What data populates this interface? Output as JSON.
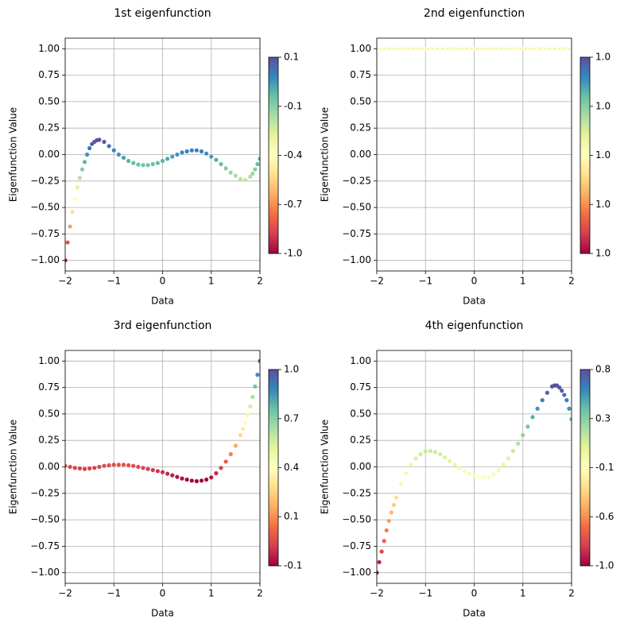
{
  "chart_data": [
    {
      "type": "scatter",
      "title": "1st eigenfunction",
      "x_label": "Data",
      "y_label": "Eigenfunction Value",
      "colormap": "Spectral",
      "grid": true,
      "x": [
        -2,
        -1.95,
        -1.9,
        -1.85,
        -1.8,
        -1.75,
        -1.7,
        -1.65,
        -1.6,
        -1.55,
        -1.5,
        -1.45,
        -1.4,
        -1.35,
        -1.3,
        -1.2,
        -1.1,
        -1.0,
        -0.9,
        -0.8,
        -0.7,
        -0.6,
        -0.5,
        -0.4,
        -0.3,
        -0.2,
        -0.1,
        0,
        0.1,
        0.2,
        0.3,
        0.4,
        0.5,
        0.6,
        0.7,
        0.8,
        0.9,
        1.0,
        1.1,
        1.2,
        1.3,
        1.4,
        1.5,
        1.6,
        1.7,
        1.8,
        1.85,
        1.9,
        1.95,
        2.0
      ],
      "values": [
        -1.0,
        -0.83,
        -0.68,
        -0.54,
        -0.42,
        -0.31,
        -0.22,
        -0.14,
        -0.07,
        0.0,
        0.06,
        0.1,
        0.12,
        0.135,
        0.14,
        0.12,
        0.08,
        0.04,
        0.0,
        -0.03,
        -0.06,
        -0.08,
        -0.095,
        -0.1,
        -0.1,
        -0.09,
        -0.08,
        -0.06,
        -0.04,
        -0.02,
        0.0,
        0.02,
        0.03,
        0.04,
        0.04,
        0.03,
        0.01,
        -0.02,
        -0.05,
        -0.09,
        -0.13,
        -0.17,
        -0.2,
        -0.23,
        -0.24,
        -0.21,
        -0.18,
        -0.14,
        -0.09,
        -0.04
      ],
      "xlim": [
        -2,
        2
      ],
      "ylim": [
        -1.1,
        1.1
      ],
      "xticks": [
        {
          "value": -2,
          "label": "−2"
        },
        {
          "value": -1,
          "label": "−1"
        },
        0,
        1,
        2
      ],
      "yticks": [
        {
          "value": -1,
          "label": "−1.00"
        },
        {
          "value": -0.75,
          "label": "−0.75"
        },
        {
          "value": -0.5,
          "label": "−0.50"
        },
        {
          "value": -0.25,
          "label": "−0.25"
        },
        {
          "value": 0,
          "label": "0.00"
        },
        {
          "value": 0.25,
          "label": "0.25"
        },
        {
          "value": 0.5,
          "label": "0.50"
        },
        {
          "value": 0.75,
          "label": "0.75"
        },
        {
          "value": 1,
          "label": "1.00"
        }
      ],
      "clim": [
        -1.0,
        0.14
      ],
      "cticks": [
        {
          "value": -1.0,
          "label": "-1.0"
        },
        {
          "value": -0.715,
          "label": "-0.7"
        },
        {
          "value": -0.43,
          "label": "-0.4"
        },
        {
          "value": -0.145,
          "label": "-0.1"
        },
        {
          "value": 0.14,
          "label": "0.1"
        }
      ]
    },
    {
      "type": "scatter",
      "title": "2nd eigenfunction",
      "x_label": "Data",
      "y_label": "Eigenfunction Value",
      "colormap": "Spectral",
      "grid": true,
      "x": [
        -2,
        -1.9,
        -1.8,
        -1.7,
        -1.6,
        -1.5,
        -1.4,
        -1.3,
        -1.2,
        -1.1,
        -1.0,
        -0.9,
        -0.8,
        -0.7,
        -0.6,
        -0.5,
        -0.4,
        -0.3,
        -0.2,
        -0.1,
        0,
        0.1,
        0.2,
        0.3,
        0.4,
        0.5,
        0.6,
        0.7,
        0.8,
        0.9,
        1.0,
        1.1,
        1.2,
        1.3,
        1.4,
        1.5,
        1.6,
        1.7,
        1.8,
        1.9,
        2.0
      ],
      "values": [
        1.0,
        1.0,
        1.0,
        1.0,
        1.0,
        1.0,
        1.0,
        1.0,
        1.0,
        1.0,
        1.0,
        1.0,
        1.0,
        1.0,
        1.0,
        1.0,
        1.0,
        1.0,
        1.0,
        1.0,
        1.0,
        1.0,
        1.0,
        1.0,
        1.0,
        1.0,
        1.0,
        1.0,
        1.0,
        1.0,
        1.0,
        1.0,
        1.0,
        1.0,
        1.0,
        1.0,
        1.0,
        1.0,
        1.0,
        1.0,
        1.0
      ],
      "xlim": [
        -2,
        2
      ],
      "ylim": [
        -1.1,
        1.1
      ],
      "xticks": [
        {
          "value": -2,
          "label": "−2"
        },
        {
          "value": -1,
          "label": "−1"
        },
        0,
        1,
        2
      ],
      "yticks": [
        {
          "value": -1,
          "label": "−1.00"
        },
        {
          "value": -0.75,
          "label": "−0.75"
        },
        {
          "value": -0.5,
          "label": "−0.50"
        },
        {
          "value": -0.25,
          "label": "−0.25"
        },
        {
          "value": 0,
          "label": "0.00"
        },
        {
          "value": 0.25,
          "label": "0.25"
        },
        {
          "value": 0.5,
          "label": "0.50"
        },
        {
          "value": 0.75,
          "label": "0.75"
        },
        {
          "value": 1,
          "label": "1.00"
        }
      ],
      "clim": [
        0.99999,
        1.00001
      ],
      "cticks": [
        {
          "value": 0.99999,
          "label": "1.0"
        },
        {
          "value": 0.999995,
          "label": "1.0"
        },
        {
          "value": 1.0,
          "label": "1.0"
        },
        {
          "value": 1.000005,
          "label": "1.0"
        },
        {
          "value": 1.00001,
          "label": "1.0"
        }
      ]
    },
    {
      "type": "scatter",
      "title": "3rd eigenfunction",
      "x_label": "Data",
      "y_label": "Eigenfunction Value",
      "colormap": "Spectral",
      "grid": true,
      "x": [
        -2,
        -1.9,
        -1.8,
        -1.7,
        -1.6,
        -1.5,
        -1.4,
        -1.3,
        -1.2,
        -1.1,
        -1.0,
        -0.9,
        -0.8,
        -0.7,
        -0.6,
        -0.5,
        -0.4,
        -0.3,
        -0.2,
        -0.1,
        0,
        0.1,
        0.2,
        0.3,
        0.4,
        0.5,
        0.6,
        0.7,
        0.8,
        0.9,
        1.0,
        1.1,
        1.2,
        1.3,
        1.4,
        1.5,
        1.6,
        1.65,
        1.7,
        1.75,
        1.8,
        1.85,
        1.9,
        1.95,
        2.0
      ],
      "values": [
        0.01,
        0.0,
        -0.01,
        -0.015,
        -0.02,
        -0.015,
        -0.01,
        0.0,
        0.01,
        0.015,
        0.02,
        0.02,
        0.02,
        0.015,
        0.01,
        0.0,
        -0.01,
        -0.02,
        -0.03,
        -0.04,
        -0.05,
        -0.065,
        -0.08,
        -0.095,
        -0.11,
        -0.12,
        -0.13,
        -0.135,
        -0.13,
        -0.12,
        -0.1,
        -0.06,
        -0.01,
        0.05,
        0.12,
        0.2,
        0.3,
        0.36,
        0.42,
        0.49,
        0.57,
        0.66,
        0.76,
        0.87,
        1.0
      ],
      "xlim": [
        -2,
        2
      ],
      "ylim": [
        -1.1,
        1.1
      ],
      "xticks": [
        {
          "value": -2,
          "label": "−2"
        },
        {
          "value": -1,
          "label": "−1"
        },
        0,
        1,
        2
      ],
      "yticks": [
        {
          "value": -1,
          "label": "−1.00"
        },
        {
          "value": -0.75,
          "label": "−0.75"
        },
        {
          "value": -0.5,
          "label": "−0.50"
        },
        {
          "value": -0.25,
          "label": "−0.25"
        },
        {
          "value": 0,
          "label": "0.00"
        },
        {
          "value": 0.25,
          "label": "0.25"
        },
        {
          "value": 0.5,
          "label": "0.50"
        },
        {
          "value": 0.75,
          "label": "0.75"
        },
        {
          "value": 1,
          "label": "1.00"
        }
      ],
      "clim": [
        -0.135,
        1.0
      ],
      "cticks": [
        {
          "value": -0.135,
          "label": "-0.1"
        },
        {
          "value": 0.149,
          "label": "0.1"
        },
        {
          "value": 0.432,
          "label": "0.4"
        },
        {
          "value": 0.716,
          "label": "0.7"
        },
        {
          "value": 1.0,
          "label": "1.0"
        }
      ]
    },
    {
      "type": "scatter",
      "title": "4th eigenfunction",
      "x_label": "Data",
      "y_label": "Eigenfunction Value",
      "colormap": "Spectral",
      "grid": true,
      "x": [
        -2,
        -1.95,
        -1.9,
        -1.85,
        -1.8,
        -1.75,
        -1.7,
        -1.65,
        -1.6,
        -1.5,
        -1.4,
        -1.3,
        -1.2,
        -1.1,
        -1.0,
        -0.9,
        -0.8,
        -0.7,
        -0.6,
        -0.5,
        -0.4,
        -0.3,
        -0.2,
        -0.1,
        0,
        0.1,
        0.2,
        0.3,
        0.4,
        0.5,
        0.6,
        0.7,
        0.8,
        0.9,
        1.0,
        1.1,
        1.2,
        1.3,
        1.4,
        1.5,
        1.6,
        1.65,
        1.7,
        1.75,
        1.8,
        1.85,
        1.9,
        1.95,
        2.0
      ],
      "values": [
        -1.0,
        -0.9,
        -0.8,
        -0.7,
        -0.6,
        -0.51,
        -0.43,
        -0.36,
        -0.29,
        -0.16,
        -0.06,
        0.02,
        0.08,
        0.12,
        0.145,
        0.15,
        0.14,
        0.12,
        0.09,
        0.055,
        0.02,
        -0.01,
        -0.04,
        -0.065,
        -0.08,
        -0.095,
        -0.1,
        -0.095,
        -0.07,
        -0.03,
        0.02,
        0.08,
        0.15,
        0.22,
        0.3,
        0.38,
        0.47,
        0.55,
        0.63,
        0.7,
        0.76,
        0.77,
        0.77,
        0.75,
        0.72,
        0.68,
        0.63,
        0.55,
        0.45
      ],
      "xlim": [
        -2,
        2
      ],
      "ylim": [
        -1.1,
        1.1
      ],
      "xticks": [
        {
          "value": -2,
          "label": "−2"
        },
        {
          "value": -1,
          "label": "−1"
        },
        0,
        1,
        2
      ],
      "yticks": [
        {
          "value": -1,
          "label": "−1.00"
        },
        {
          "value": -0.75,
          "label": "−0.75"
        },
        {
          "value": -0.5,
          "label": "−0.50"
        },
        {
          "value": -0.25,
          "label": "−0.25"
        },
        {
          "value": 0,
          "label": "0.00"
        },
        {
          "value": 0.25,
          "label": "0.25"
        },
        {
          "value": 0.5,
          "label": "0.50"
        },
        {
          "value": 0.75,
          "label": "0.75"
        },
        {
          "value": 1,
          "label": "1.00"
        }
      ],
      "clim": [
        -1.0,
        0.77
      ],
      "cticks": [
        {
          "value": -1.0,
          "label": "-1.0"
        },
        {
          "value": -0.5575,
          "label": "-0.6"
        },
        {
          "value": -0.115,
          "label": "-0.1"
        },
        {
          "value": 0.3275,
          "label": "0.3"
        },
        {
          "value": 0.77,
          "label": "0.8"
        }
      ]
    }
  ]
}
